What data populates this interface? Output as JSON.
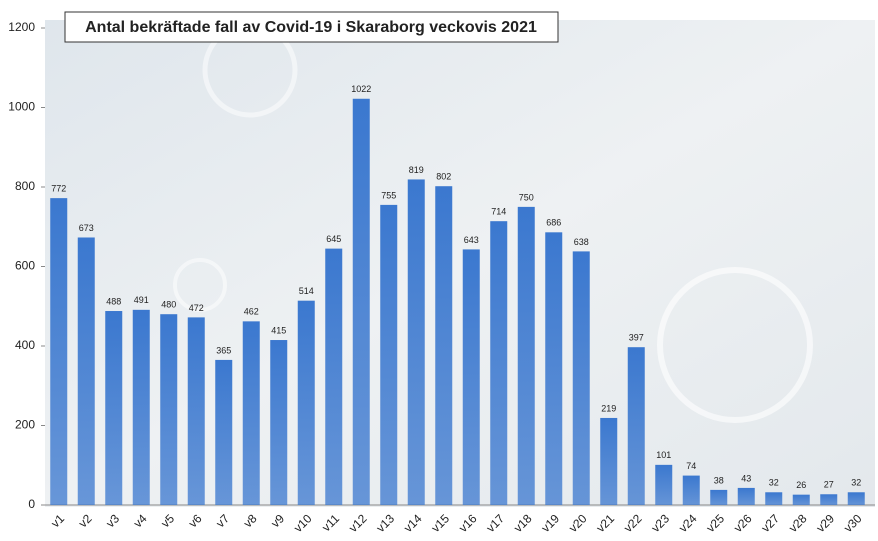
{
  "chart_data": {
    "type": "bar",
    "title": "Antal bekräftade fall av Covid-19 i Skaraborg veckovis 2021",
    "categories": [
      "v1",
      "v2",
      "v3",
      "v4",
      "v5",
      "v6",
      "v7",
      "v8",
      "v9",
      "v10",
      "v11",
      "v12",
      "v13",
      "v14",
      "v15",
      "v16",
      "v17",
      "v18",
      "v19",
      "v20",
      "v21",
      "v22",
      "v23",
      "v24",
      "v25",
      "v26",
      "v27",
      "v28",
      "v29",
      "v30"
    ],
    "values": [
      772,
      673,
      488,
      491,
      480,
      472,
      365,
      462,
      415,
      514,
      645,
      1022,
      755,
      819,
      802,
      643,
      714,
      750,
      686,
      638,
      219,
      397,
      101,
      74,
      38,
      43,
      32,
      26,
      27,
      32
    ],
    "color": "#3b78cf",
    "ylim": [
      0,
      1200
    ],
    "yticks": [
      0,
      200,
      400,
      600,
      800,
      1000,
      1200
    ],
    "grid": false
  }
}
